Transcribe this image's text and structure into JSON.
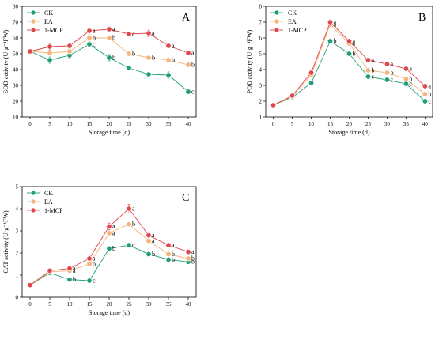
{
  "colors": {
    "CK": "#1e9e76",
    "EA": "#f5b47a",
    "1-MCP": "#e0474c"
  },
  "chart_data": [
    {
      "type": "line",
      "panel": "A",
      "x": [
        0,
        5,
        10,
        15,
        20,
        25,
        30,
        35,
        40
      ],
      "xticks": [
        "0",
        "5",
        "10",
        "15",
        "20",
        "25",
        "30",
        "35",
        "40"
      ],
      "xlim": [
        -2,
        42
      ],
      "ylim": [
        10,
        80
      ],
      "yticks": [
        "10",
        "20",
        "30",
        "40",
        "50",
        "60",
        "70",
        "80"
      ],
      "xlabel": "Storage time (d)",
      "ylabel": "SOD activity (U·g⁻¹FW)",
      "legend": "top-left",
      "series": [
        {
          "name": "CK",
          "values": [
            51.5,
            46,
            49,
            56,
            47.5,
            41,
            37,
            36.5,
            26
          ],
          "err": [
            1,
            2,
            2,
            1.5,
            2,
            1,
            1,
            2,
            1.5
          ]
        },
        {
          "name": "EA",
          "values": [
            51.5,
            50.5,
            51.5,
            60,
            60,
            50,
            47.5,
            46,
            43
          ],
          "err": [
            1,
            1.5,
            1.5,
            2,
            1.5,
            1,
            1,
            1.5,
            1
          ]
        },
        {
          "name": "1-MCP",
          "values": [
            51.5,
            54.5,
            55,
            64.5,
            65.5,
            62.5,
            63,
            55,
            50.5
          ],
          "err": [
            1,
            2,
            1.5,
            1.5,
            1.5,
            1,
            2,
            1,
            1
          ]
        }
      ],
      "sig_labels": [
        {
          "x": 15,
          "series": "CK",
          "label": "c"
        },
        {
          "x": 15,
          "series": "EA",
          "label": "b"
        },
        {
          "x": 15,
          "series": "1-MCP",
          "label": "a"
        },
        {
          "x": 20,
          "series": "CK",
          "label": "b"
        },
        {
          "x": 20,
          "series": "EA",
          "label": "b"
        },
        {
          "x": 20,
          "series": "1-MCP",
          "label": "a"
        },
        {
          "x": 25,
          "series": "EA",
          "label": "b"
        },
        {
          "x": 25,
          "series": "1-MCP",
          "label": "a"
        },
        {
          "x": 30,
          "series": "EA",
          "label": "b"
        },
        {
          "x": 30,
          "series": "1-MCP",
          "label": "a"
        },
        {
          "x": 35,
          "series": "EA",
          "label": "b"
        },
        {
          "x": 35,
          "series": "1-MCP",
          "label": "a"
        },
        {
          "x": 40,
          "series": "CK",
          "label": "c"
        },
        {
          "x": 40,
          "series": "EA",
          "label": "b"
        },
        {
          "x": 40,
          "series": "1-MCP",
          "label": "a"
        }
      ]
    },
    {
      "type": "line",
      "panel": "B",
      "x": [
        0,
        5,
        10,
        15,
        20,
        25,
        30,
        35,
        40
      ],
      "xticks": [
        "0",
        "5",
        "10",
        "15",
        "20",
        "25",
        "30",
        "35",
        "40"
      ],
      "xlim": [
        -2,
        42
      ],
      "ylim": [
        1,
        8
      ],
      "yticks": [
        "1",
        "2",
        "3",
        "4",
        "5",
        "6",
        "7",
        "8"
      ],
      "xlabel": "Storage time (d)",
      "ylabel": "POD activity (U·g⁻¹FW)",
      "legend": "top-left",
      "series": [
        {
          "name": "CK",
          "values": [
            1.75,
            2.25,
            3.15,
            5.8,
            5.0,
            3.55,
            3.35,
            3.1,
            2.0
          ],
          "err": [
            0.05,
            0.1,
            0.1,
            0.15,
            0.1,
            0.1,
            0.1,
            0.1,
            0.1
          ]
        },
        {
          "name": "EA",
          "values": [
            1.75,
            2.3,
            3.65,
            6.85,
            5.65,
            3.95,
            3.8,
            3.4,
            2.45
          ],
          "err": [
            0.05,
            0.1,
            0.1,
            0.15,
            0.1,
            0.1,
            0.1,
            0.1,
            0.1
          ]
        },
        {
          "name": "1-MCP",
          "values": [
            1.75,
            2.35,
            3.8,
            7.0,
            5.8,
            4.6,
            4.35,
            4.05,
            2.95
          ],
          "err": [
            0.05,
            0.1,
            0.1,
            0.15,
            0.1,
            0.1,
            0.1,
            0.1,
            0.1
          ]
        }
      ],
      "sig_labels": [
        {
          "x": 15,
          "series": "CK",
          "label": "b"
        },
        {
          "x": 15,
          "series": "EA",
          "label": "a"
        },
        {
          "x": 15,
          "series": "1-MCP",
          "label": "a"
        },
        {
          "x": 20,
          "series": "CK",
          "label": "b"
        },
        {
          "x": 20,
          "series": "EA",
          "label": "a"
        },
        {
          "x": 20,
          "series": "1-MCP",
          "label": "a"
        },
        {
          "x": 25,
          "series": "CK",
          "label": "c"
        },
        {
          "x": 25,
          "series": "EA",
          "label": "b"
        },
        {
          "x": 25,
          "series": "1-MCP",
          "label": "a"
        },
        {
          "x": 30,
          "series": "CK",
          "label": "c"
        },
        {
          "x": 30,
          "series": "EA",
          "label": "b"
        },
        {
          "x": 30,
          "series": "1-MCP",
          "label": "a"
        },
        {
          "x": 35,
          "series": "CK",
          "label": "c"
        },
        {
          "x": 35,
          "series": "EA",
          "label": "b"
        },
        {
          "x": 35,
          "series": "1-MCP",
          "label": "a"
        },
        {
          "x": 40,
          "series": "CK",
          "label": "c"
        },
        {
          "x": 40,
          "series": "EA",
          "label": "b"
        },
        {
          "x": 40,
          "series": "1-MCP",
          "label": "a"
        }
      ]
    },
    {
      "type": "line",
      "panel": "C",
      "x": [
        0,
        5,
        10,
        15,
        20,
        25,
        30,
        35,
        40
      ],
      "xticks": [
        "0",
        "5",
        "10",
        "15",
        "20",
        "25",
        "30",
        "35",
        "40"
      ],
      "xlim": [
        -2,
        42
      ],
      "ylim": [
        0,
        5
      ],
      "yticks": [
        "0",
        "1",
        "2",
        "3",
        "4",
        "5"
      ],
      "xlabel": "Storage time (d)",
      "ylabel": "CAT activity (U·g⁻¹FW)",
      "legend": "top-left",
      "series": [
        {
          "name": "CK",
          "values": [
            0.55,
            1.1,
            0.8,
            0.75,
            2.2,
            2.35,
            1.95,
            1.7,
            1.6
          ],
          "err": [
            0.05,
            0.05,
            0.05,
            0.05,
            0.1,
            0.1,
            0.1,
            0.05,
            0.05
          ]
        },
        {
          "name": "EA",
          "values": [
            0.55,
            1.15,
            1.2,
            1.5,
            2.9,
            3.3,
            2.55,
            1.95,
            1.75
          ],
          "err": [
            0.05,
            0.05,
            0.05,
            0.05,
            0.1,
            0.1,
            0.1,
            0.05,
            0.05
          ]
        },
        {
          "name": "1-MCP",
          "values": [
            0.55,
            1.2,
            1.3,
            1.75,
            3.2,
            4.0,
            2.8,
            2.35,
            2.05
          ],
          "err": [
            0.05,
            0.05,
            0.05,
            0.05,
            0.15,
            0.2,
            0.1,
            0.05,
            0.05
          ]
        }
      ],
      "sig_labels": [
        {
          "x": 10,
          "series": "CK",
          "label": "b"
        },
        {
          "x": 10,
          "series": "EA",
          "label": "a"
        },
        {
          "x": 10,
          "series": "1-MCP",
          "label": "a"
        },
        {
          "x": 15,
          "series": "CK",
          "label": "c"
        },
        {
          "x": 15,
          "series": "EA",
          "label": "b"
        },
        {
          "x": 15,
          "series": "1-MCP",
          "label": "a"
        },
        {
          "x": 20,
          "series": "CK",
          "label": "b"
        },
        {
          "x": 20,
          "series": "EA",
          "label": "a"
        },
        {
          "x": 20,
          "series": "1-MCP",
          "label": "a"
        },
        {
          "x": 25,
          "series": "CK",
          "label": "c"
        },
        {
          "x": 25,
          "series": "EA",
          "label": "b"
        },
        {
          "x": 25,
          "series": "1-MCP",
          "label": "a"
        },
        {
          "x": 30,
          "series": "CK",
          "label": "b"
        },
        {
          "x": 30,
          "series": "EA",
          "label": "a"
        },
        {
          "x": 30,
          "series": "1-MCP",
          "label": "a"
        },
        {
          "x": 35,
          "series": "CK",
          "label": "b"
        },
        {
          "x": 35,
          "series": "EA",
          "label": "b"
        },
        {
          "x": 35,
          "series": "1-MCP",
          "label": "a"
        },
        {
          "x": 40,
          "series": "CK",
          "label": "b"
        },
        {
          "x": 40,
          "series": "EA",
          "label": "b"
        },
        {
          "x": 40,
          "series": "1-MCP",
          "label": "a"
        }
      ]
    }
  ]
}
